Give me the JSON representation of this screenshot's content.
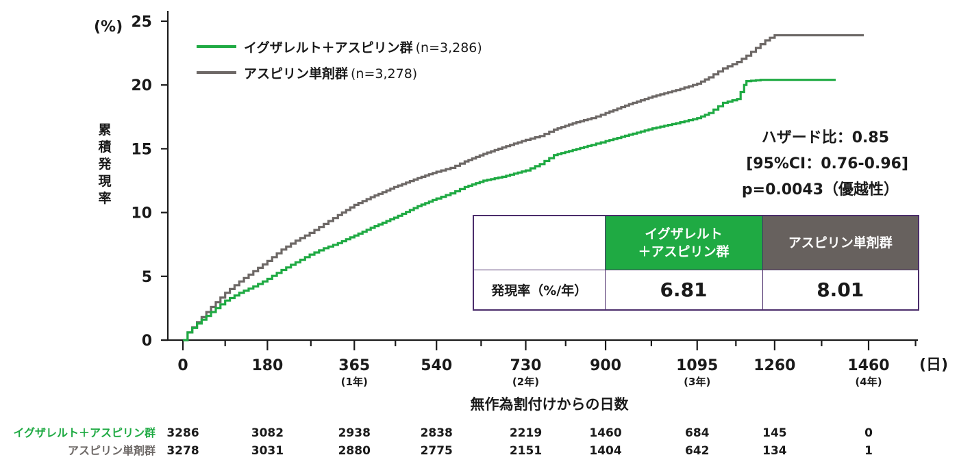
{
  "chart_data": {
    "type": "line",
    "ylabel": "累積発現率",
    "y_unit": "(%)",
    "ylim": [
      0,
      25
    ],
    "yticks": [
      0,
      5,
      10,
      15,
      20,
      25
    ],
    "xlabel": "無作為割付けからの日数",
    "x_unit": "(日)",
    "xlim": [
      0,
      1460
    ],
    "xticks": [
      {
        "value": 0,
        "label": "0",
        "sub": ""
      },
      {
        "value": 180,
        "label": "180",
        "sub": ""
      },
      {
        "value": 365,
        "label": "365",
        "sub": "(1年)"
      },
      {
        "value": 540,
        "label": "540",
        "sub": ""
      },
      {
        "value": 730,
        "label": "730",
        "sub": "(2年)"
      },
      {
        "value": 900,
        "label": "900",
        "sub": ""
      },
      {
        "value": 1095,
        "label": "1095",
        "sub": "(3年)"
      },
      {
        "value": 1260,
        "label": "1260",
        "sub": ""
      },
      {
        "value": 1460,
        "label": "1460",
        "sub": "(4年)"
      }
    ],
    "series": [
      {
        "name": "イグザレルト＋アスピリン群",
        "n_label": "(n=3,286)",
        "color": "#1faa43",
        "x": [
          0,
          10,
          30,
          60,
          90,
          120,
          150,
          180,
          210,
          240,
          270,
          300,
          330,
          365,
          400,
          450,
          500,
          540,
          570,
          600,
          640,
          680,
          730,
          760,
          790,
          830,
          870,
          900,
          950,
          1000,
          1050,
          1095,
          1120,
          1150,
          1180,
          1195,
          1200,
          1230,
          1390
        ],
        "y": [
          0,
          0.6,
          1.3,
          2.2,
          3.1,
          3.7,
          4.2,
          4.8,
          5.5,
          6.1,
          6.7,
          7.2,
          7.6,
          8.2,
          8.8,
          9.6,
          10.5,
          11.1,
          11.5,
          12.0,
          12.5,
          12.8,
          13.3,
          13.8,
          14.5,
          14.9,
          15.3,
          15.6,
          16.1,
          16.6,
          17.0,
          17.4,
          17.8,
          18.6,
          18.9,
          20.0,
          20.3,
          20.4,
          20.4
        ]
      },
      {
        "name": "アスピリン単剤群",
        "n_label": "(n=3,278)",
        "color": "#6d6866",
        "x": [
          0,
          10,
          30,
          60,
          90,
          120,
          150,
          180,
          210,
          240,
          270,
          300,
          330,
          365,
          400,
          450,
          500,
          540,
          570,
          600,
          640,
          680,
          730,
          760,
          790,
          830,
          870,
          900,
          950,
          1000,
          1050,
          1095,
          1120,
          1150,
          1180,
          1200,
          1220,
          1240,
          1260,
          1300,
          1450
        ],
        "y": [
          0,
          0.6,
          1.4,
          2.6,
          3.7,
          4.6,
          5.4,
          6.2,
          7.1,
          7.8,
          8.4,
          9.1,
          9.8,
          10.6,
          11.2,
          12.0,
          12.7,
          13.2,
          13.5,
          14.0,
          14.6,
          15.1,
          15.7,
          16.0,
          16.5,
          17.0,
          17.4,
          17.8,
          18.5,
          19.1,
          19.6,
          20.1,
          20.6,
          21.3,
          21.8,
          22.3,
          22.9,
          23.5,
          23.9,
          23.9,
          23.9
        ]
      }
    ],
    "annotations": {
      "hazard_ratio": "ハザード比：0.85",
      "ci": "[95%CI：0.76-0.96]",
      "p_value": "p=0.0043（優越性）"
    }
  },
  "table": {
    "header_green": [
      "イグザレルト",
      "＋アスピリン群"
    ],
    "header_gray": "アスピリン単剤群",
    "row_label": "発現率（%/年）",
    "values": [
      "6.81",
      "8.01"
    ]
  },
  "at_risk": {
    "rows": [
      {
        "label": "イグザレルト＋アスピリン群",
        "color": "#1faa43",
        "counts": [
          "3286",
          "3082",
          "2938",
          "2838",
          "2219",
          "1460",
          "684",
          "145",
          "0"
        ]
      },
      {
        "label": "アスピリン単剤群",
        "color": "#6d6866",
        "counts": [
          "3278",
          "3031",
          "2880",
          "2775",
          "2151",
          "1404",
          "642",
          "134",
          "1"
        ]
      }
    ]
  }
}
